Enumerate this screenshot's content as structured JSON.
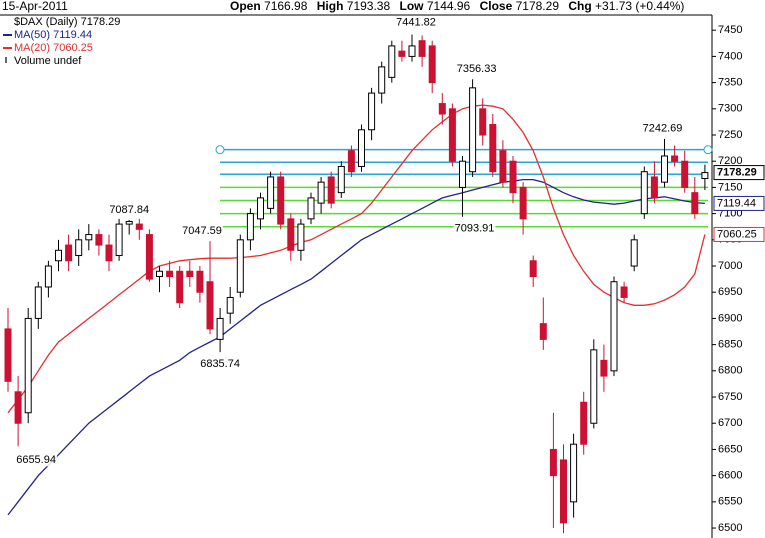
{
  "header": {
    "date": "15-Apr-2011",
    "open_label": "Open",
    "high_label": "High",
    "low_label": "Low",
    "close_label": "Close",
    "chg_label": "Chg",
    "change": "+31.73",
    "change_pct": "(+0.44%)"
  },
  "chart_data": {
    "type": "candlestick",
    "name": "$DAX (Daily)",
    "up_color": "#ffffff",
    "down_color": "#cc1133",
    "categories": [
      null,
      null,
      null,
      null,
      null,
      null,
      null,
      null,
      null,
      null,
      null,
      null,
      null,
      null,
      null,
      null,
      null,
      null,
      null,
      null,
      null,
      null,
      null,
      null,
      null,
      null,
      null,
      null,
      null,
      null,
      null,
      null,
      null,
      null,
      null,
      null,
      null,
      null,
      null,
      null,
      null,
      null,
      null,
      null,
      null,
      null,
      null,
      null,
      null,
      null,
      null,
      null,
      null,
      null,
      null,
      null,
      null,
      null,
      null,
      null,
      null,
      null,
      null,
      null,
      null,
      null,
      null,
      null,
      null,
      null
    ],
    "open": [
      6880,
      6760,
      6720,
      6900,
      6960,
      7010,
      7040,
      7020,
      7050,
      7060,
      7040,
      7020,
      7080,
      7080,
      7060,
      6980,
      6990,
      6990,
      6990,
      6990,
      6970,
      6860,
      6910,
      6950,
      7050,
      7090,
      7110,
      7170,
      7090,
      7030,
      7090,
      7120,
      7170,
      7140,
      7220,
      7190,
      7260,
      7330,
      7360,
      7410,
      7400,
      7430,
      7420,
      7310,
      7300,
      7150,
      7180,
      7300,
      7270,
      7220,
      7200,
      7150,
      7010,
      6890,
      6650,
      6630,
      6550,
      6740,
      6700,
      6820,
      6800,
      6960,
      7000,
      7100,
      7170,
      7160,
      7210,
      7200,
      7140,
      7166.98
    ],
    "high": [
      6920,
      6790,
      6920,
      6970,
      7010,
      7050,
      7060,
      7070,
      7080,
      7070,
      7060,
      7090,
      7087.84,
      7090,
      7070,
      7000,
      7010,
      7000,
      7010,
      7000,
      7047.59,
      6920,
      6960,
      7060,
      7110,
      7140,
      7180,
      7180,
      7100,
      7090,
      7140,
      7170,
      7180,
      7200,
      7230,
      7270,
      7340,
      7390,
      7430,
      7430,
      7441.82,
      7440,
      7430,
      7330,
      7310,
      7210,
      7356.33,
      7320,
      7290,
      7240,
      7210,
      7160,
      7020,
      6940,
      6720,
      6660,
      6680,
      6760,
      6860,
      6850,
      6980,
      6970,
      7060,
      7190,
      7200,
      7242.69,
      7230,
      7220,
      7170,
      7193.38
    ],
    "low": [
      6760,
      6655.94,
      6700,
      6880,
      6940,
      6990,
      6990,
      7000,
      7030,
      7020,
      6990,
      7010,
      7060,
      7050,
      6970,
      6950,
      6960,
      6920,
      6960,
      6930,
      6870,
      6835.74,
      6890,
      6940,
      7030,
      7070,
      7100,
      7070,
      7010,
      7010,
      7080,
      7100,
      7110,
      7130,
      7170,
      7180,
      7240,
      7310,
      7350,
      7390,
      7390,
      7380,
      7330,
      7270,
      7190,
      7093.91,
      7170,
      7230,
      7170,
      7150,
      7120,
      7060,
      6960,
      6840,
      6500,
      6490,
      6520,
      6640,
      6690,
      6760,
      6790,
      6930,
      6990,
      7090,
      7120,
      7150,
      7190,
      7140,
      7090,
      7144.96
    ],
    "close": [
      6780,
      6700,
      6900,
      6960,
      7000,
      7030,
      7010,
      7050,
      7060,
      7040,
      7010,
      7080,
      7085,
      7070,
      6975,
      6990,
      6980,
      6930,
      6980,
      6950,
      6880,
      6900,
      6940,
      7050,
      7100,
      7130,
      7170,
      7080,
      7030,
      7080,
      7130,
      7160,
      7120,
      7190,
      7180,
      7260,
      7330,
      7380,
      7420,
      7400,
      7420,
      7400,
      7350,
      7290,
      7200,
      7200,
      7340,
      7250,
      7180,
      7160,
      7140,
      7090,
      6980,
      6860,
      6600,
      6510,
      6660,
      6660,
      6840,
      6790,
      6970,
      6940,
      7050,
      7180,
      7130,
      7210,
      7200,
      7150,
      7100,
      7178.29
    ],
    "series": [
      {
        "name": "MA(50)",
        "color": "#23238e",
        "values": [
          6525,
          6550,
          6575,
          6600,
          6620,
          6640,
          6660,
          6680,
          6700,
          6715,
          6730,
          6745,
          6760,
          6775,
          6790,
          6800,
          6810,
          6820,
          6835,
          6845,
          6855,
          6865,
          6880,
          6895,
          6910,
          6925,
          6935,
          6945,
          6955,
          6965,
          6975,
          6990,
          7005,
          7020,
          7035,
          7050,
          7060,
          7070,
          7080,
          7090,
          7100,
          7110,
          7120,
          7130,
          7135,
          7140,
          7145,
          7150,
          7155,
          7160,
          7162,
          7165,
          7165,
          7160,
          7150,
          7140,
          7132,
          7126,
          7122,
          7120,
          7118,
          7120,
          7124,
          7128,
          7130,
          7132,
          7128,
          7124,
          7121,
          7119.44
        ]
      },
      {
        "name": "MA(20)",
        "color": "#e23030",
        "values": [
          6720,
          6745,
          6770,
          6800,
          6830,
          6855,
          6870,
          6885,
          6900,
          6915,
          6930,
          6945,
          6960,
          6975,
          6990,
          7000,
          7005,
          7010,
          7012,
          7014,
          7015,
          7015,
          7015,
          7016,
          7018,
          7020,
          7025,
          7030,
          7038,
          7045,
          7050,
          7060,
          7070,
          7080,
          7090,
          7100,
          7120,
          7145,
          7170,
          7195,
          7220,
          7240,
          7260,
          7275,
          7290,
          7300,
          7305,
          7307,
          7305,
          7300,
          7280,
          7255,
          7220,
          7170,
          7110,
          7060,
          7020,
          6990,
          6965,
          6950,
          6940,
          6930,
          6925,
          6925,
          6928,
          6935,
          6945,
          6960,
          6985,
          7060.25
        ]
      }
    ],
    "volume_label": "Volume undef",
    "levels": [
      {
        "value": 7222,
        "color": "#2aa6d6"
      },
      {
        "value": 7198,
        "color": "#2aa6d6"
      },
      {
        "value": 7175,
        "color": "#2aa6d6"
      },
      {
        "value": 7150,
        "color": "#55dd33"
      },
      {
        "value": 7125,
        "color": "#55dd33"
      },
      {
        "value": 7100,
        "color": "#55dd33"
      },
      {
        "value": 7075,
        "color": "#55dd33"
      }
    ],
    "ylim": [
      6481,
      7479
    ],
    "yticks": [
      6500,
      6550,
      6600,
      6650,
      6700,
      6750,
      6800,
      6850,
      6900,
      6950,
      7000,
      7050,
      7100,
      7150,
      7200,
      7250,
      7300,
      7350,
      7400,
      7450
    ],
    "grid": false
  }
}
